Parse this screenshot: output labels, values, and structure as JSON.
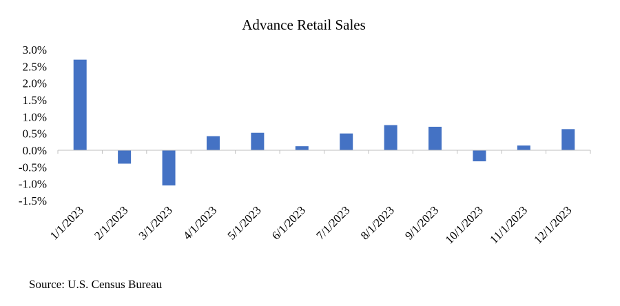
{
  "chart_data": {
    "type": "bar",
    "title": "Advance Retail Sales",
    "xlabel": "",
    "ylabel": "",
    "categories": [
      "1/1/2023",
      "2/1/2023",
      "3/1/2023",
      "4/1/2023",
      "5/1/2023",
      "6/1/2023",
      "7/1/2023",
      "8/1/2023",
      "9/1/2023",
      "10/1/2023",
      "11/1/2023",
      "12/1/2023"
    ],
    "values": [
      2.7,
      -0.4,
      -1.05,
      0.42,
      0.52,
      0.12,
      0.5,
      0.75,
      0.7,
      -0.33,
      0.14,
      0.63
    ],
    "unit": "%",
    "ylim": [
      -1.5,
      3.0
    ],
    "yticks": [
      "3.0%",
      "2.5%",
      "2.0%",
      "1.5%",
      "1.0%",
      "0.5%",
      "0.0%",
      "-0.5%",
      "-1.0%",
      "-1.5%"
    ],
    "ytick_values": [
      3.0,
      2.5,
      2.0,
      1.5,
      1.0,
      0.5,
      0.0,
      -0.5,
      -1.0,
      -1.5
    ],
    "grid": false,
    "legend": "none",
    "bar_color": "#4472C4",
    "axis_color": "#BFBFBF"
  },
  "source_note": "Source: U.S. Census Bureau"
}
